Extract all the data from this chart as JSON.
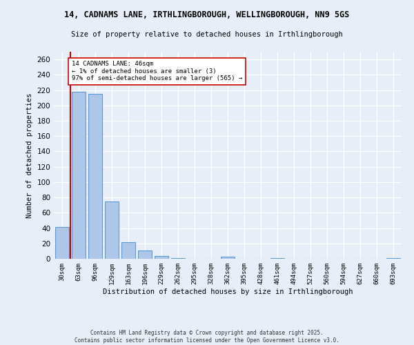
{
  "title_line1": "14, CADNAMS LANE, IRTHLINGBOROUGH, WELLINGBOROUGH, NN9 5GS",
  "title_line2": "Size of property relative to detached houses in Irthlingborough",
  "xlabel": "Distribution of detached houses by size in Irthlingborough",
  "ylabel": "Number of detached properties",
  "categories": [
    "30sqm",
    "63sqm",
    "96sqm",
    "129sqm",
    "163sqm",
    "196sqm",
    "229sqm",
    "262sqm",
    "295sqm",
    "328sqm",
    "362sqm",
    "395sqm",
    "428sqm",
    "461sqm",
    "494sqm",
    "527sqm",
    "560sqm",
    "594sqm",
    "627sqm",
    "660sqm",
    "693sqm"
  ],
  "values": [
    41,
    218,
    215,
    75,
    22,
    11,
    4,
    1,
    0,
    0,
    3,
    0,
    0,
    1,
    0,
    0,
    0,
    0,
    0,
    0,
    1
  ],
  "bar_color": "#aec6e8",
  "bar_edge_color": "#5b9bd5",
  "property_line_color": "#cc0000",
  "annotation_text": "14 CADNAMS LANE: 46sqm\n← 1% of detached houses are smaller (3)\n97% of semi-detached houses are larger (565) →",
  "annotation_box_color": "#ffffff",
  "annotation_box_edge_color": "#cc0000",
  "ylim": [
    0,
    270
  ],
  "yticks": [
    0,
    20,
    40,
    60,
    80,
    100,
    120,
    140,
    160,
    180,
    200,
    220,
    240,
    260
  ],
  "background_color": "#e8eef7",
  "grid_color": "#ffffff",
  "footer_line1": "Contains HM Land Registry data © Crown copyright and database right 2025.",
  "footer_line2": "Contains public sector information licensed under the Open Government Licence v3.0."
}
